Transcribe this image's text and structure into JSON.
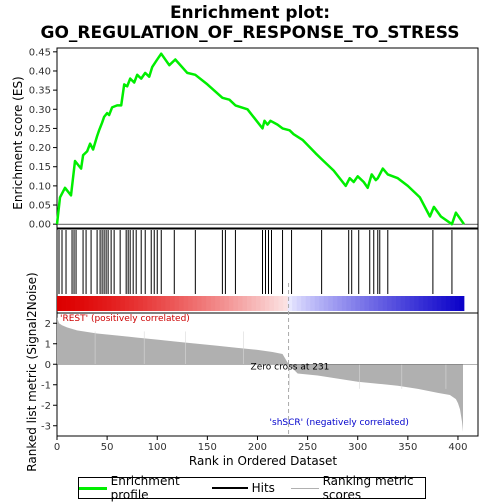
{
  "title": {
    "line1": "Enrichment plot:",
    "line2": "GO_REGULATION_OF_RESPONSE_TO_STRESS"
  },
  "colors": {
    "enrichment_line": "#00ee00",
    "hits": "#000000",
    "metric_fill": "#b0b0b0",
    "positive_label": "#cc0000",
    "negative_label": "#0000cc",
    "zero_cross_line": "#aaaaaa"
  },
  "chart_data": {
    "type": "line",
    "panels": {
      "enrichment": {
        "ylabel": "Enrichment score (ES)",
        "ylim": [
          -0.01,
          0.46
        ],
        "yticks": [
          0.0,
          0.05,
          0.1,
          0.15,
          0.2,
          0.25,
          0.3,
          0.35,
          0.4,
          0.45
        ],
        "ytick_labels": [
          "0.00",
          "0.05",
          "0.10",
          "0.15",
          "0.20",
          "0.25",
          "0.30",
          "0.35",
          "0.40",
          "0.45"
        ],
        "series": [
          {
            "name": "Enrichment profile",
            "x": [
              0,
              3,
              8,
              14,
              18,
              24,
              26,
              30,
              33,
              36,
              40,
              42,
              45,
              47,
              50,
              52,
              55,
              60,
              64,
              67,
              70,
              73,
              77,
              80,
              84,
              88,
              92,
              95,
              100,
              104,
              112,
              118,
              130,
              138,
              150,
              165,
              172,
              178,
              190,
              205,
              207,
              210,
              213,
              220,
              225,
              232,
              236,
              245,
              258,
              264,
              276,
              288,
              292,
              296,
              300,
              306,
              310,
              314,
              318,
              320,
              325,
              330,
              340,
              350,
              362,
              372,
              376,
              383,
              394,
              398,
              406
            ],
            "y": [
              0.0,
              0.07,
              0.095,
              0.075,
              0.165,
              0.145,
              0.18,
              0.19,
              0.21,
              0.195,
              0.23,
              0.245,
              0.265,
              0.28,
              0.29,
              0.285,
              0.305,
              0.31,
              0.31,
              0.365,
              0.36,
              0.38,
              0.37,
              0.39,
              0.38,
              0.395,
              0.385,
              0.41,
              0.43,
              0.445,
              0.415,
              0.43,
              0.395,
              0.39,
              0.365,
              0.33,
              0.325,
              0.31,
              0.3,
              0.25,
              0.27,
              0.26,
              0.27,
              0.26,
              0.25,
              0.245,
              0.235,
              0.22,
              0.185,
              0.17,
              0.14,
              0.1,
              0.12,
              0.11,
              0.125,
              0.11,
              0.095,
              0.13,
              0.115,
              0.12,
              0.145,
              0.13,
              0.12,
              0.1,
              0.07,
              0.02,
              0.045,
              0.02,
              0.0,
              0.03,
              0.0
            ]
          }
        ]
      },
      "hits": {
        "name": "Hits",
        "positions": [
          2,
          5,
          9,
          15,
          17,
          19,
          26,
          29,
          34,
          40,
          43,
          45,
          47,
          49,
          51,
          54,
          57,
          63,
          69,
          71,
          73,
          76,
          79,
          84,
          88,
          94,
          97,
          100,
          104,
          117,
          138,
          165,
          168,
          178,
          205,
          208,
          211,
          214,
          225,
          234,
          264,
          291,
          294,
          301,
          312,
          316,
          320,
          322,
          330,
          375,
          394
        ]
      },
      "ranking": {
        "name": "Ranking metric scores",
        "ylabel": "Ranked list metric (Signal2Noise)",
        "ylim": [
          -3.5,
          2.5
        ],
        "yticks": [
          -3,
          -2,
          -1,
          0,
          1,
          2
        ],
        "ytick_labels": [
          "-3",
          "-2",
          "-1",
          "0",
          "1",
          "2"
        ],
        "x": [
          0,
          2,
          5,
          10,
          20,
          40,
          60,
          80,
          100,
          120,
          140,
          160,
          180,
          200,
          215,
          225,
          231,
          240,
          260,
          280,
          300,
          320,
          340,
          360,
          380,
          392,
          398,
          400,
          402,
          404,
          405
        ],
        "values": [
          2.3,
          2.0,
          1.9,
          1.8,
          1.65,
          1.5,
          1.4,
          1.3,
          1.2,
          1.1,
          1.0,
          0.9,
          0.8,
          0.7,
          0.6,
          0.5,
          0.0,
          -0.45,
          -0.55,
          -0.7,
          -0.85,
          -0.95,
          -1.05,
          -1.2,
          -1.4,
          -1.5,
          -1.7,
          -1.9,
          -2.2,
          -2.8,
          -3.3
        ]
      },
      "annotations": {
        "positive": "'REST' (positively correlated)",
        "negative": "'shSCR' (negatively correlated)",
        "zero_cross": "Zero cross at 231",
        "zero_cross_x": 231
      }
    },
    "xlabel": "Rank in Ordered Dataset",
    "xlim": [
      0,
      420
    ],
    "xticks": [
      0,
      50,
      100,
      150,
      200,
      250,
      300,
      350,
      400
    ],
    "xtick_labels": [
      "0",
      "50",
      "100",
      "150",
      "200",
      "250",
      "300",
      "350",
      "400"
    ],
    "total": 406
  },
  "legend": {
    "items": [
      "Enrichment profile",
      "Hits",
      "Ranking metric scores"
    ]
  }
}
